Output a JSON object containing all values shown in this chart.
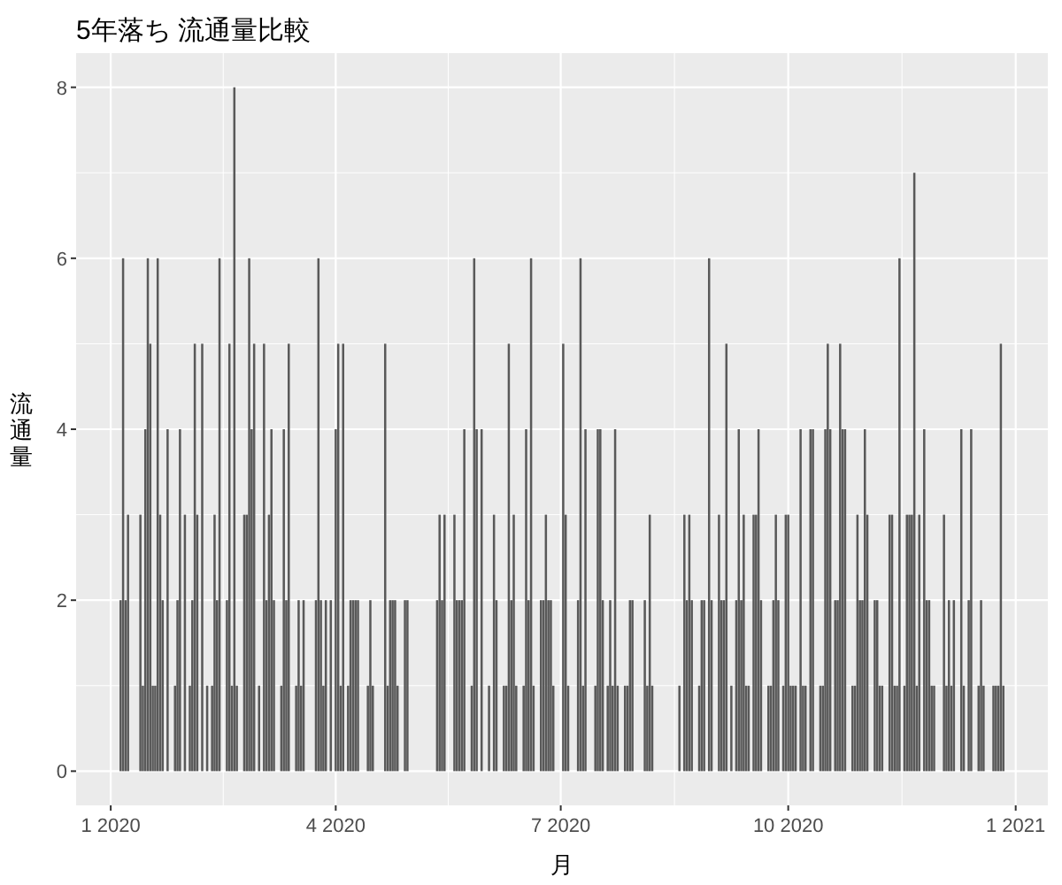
{
  "chart_data": {
    "type": "bar",
    "title": "5年落ち 流通量比較",
    "xlabel": "月",
    "ylabel": "流通量",
    "color": "#595959",
    "grid": true,
    "xlim": [
      "2019-12-18",
      "2021-01-14"
    ],
    "xticks": [
      {
        "value": "2020-01-01",
        "label": "1 2020"
      },
      {
        "value": "2020-04-01",
        "label": "4 2020"
      },
      {
        "value": "2020-07-01",
        "label": "7 2020"
      },
      {
        "value": "2020-10-01",
        "label": "10 2020"
      },
      {
        "value": "2021-01-01",
        "label": "1 2021"
      }
    ],
    "ylim": [
      -0.4,
      8.4
    ],
    "yticks": [
      0,
      2,
      4,
      6,
      8
    ],
    "x": [
      "2020-01-05",
      "2020-01-06",
      "2020-01-07",
      "2020-01-08",
      "2020-01-13",
      "2020-01-14",
      "2020-01-15",
      "2020-01-16",
      "2020-01-17",
      "2020-01-18",
      "2020-01-19",
      "2020-01-20",
      "2020-01-21",
      "2020-01-22",
      "2020-01-24",
      "2020-01-27",
      "2020-01-28",
      "2020-01-29",
      "2020-01-31",
      "2020-02-02",
      "2020-02-03",
      "2020-02-04",
      "2020-02-05",
      "2020-02-07",
      "2020-02-09",
      "2020-02-11",
      "2020-02-12",
      "2020-02-13",
      "2020-02-14",
      "2020-02-17",
      "2020-02-18",
      "2020-02-19",
      "2020-02-20",
      "2020-02-21",
      "2020-02-24",
      "2020-02-25",
      "2020-02-26",
      "2020-02-27",
      "2020-02-28",
      "2020-03-01",
      "2020-03-03",
      "2020-03-04",
      "2020-03-05",
      "2020-03-06",
      "2020-03-07",
      "2020-03-10",
      "2020-03-11",
      "2020-03-12",
      "2020-03-13",
      "2020-03-16",
      "2020-03-17",
      "2020-03-18",
      "2020-03-19",
      "2020-03-24",
      "2020-03-25",
      "2020-03-26",
      "2020-03-27",
      "2020-03-28",
      "2020-03-30",
      "2020-04-01",
      "2020-04-02",
      "2020-04-03",
      "2020-04-04",
      "2020-04-06",
      "2020-04-07",
      "2020-04-08",
      "2020-04-09",
      "2020-04-10",
      "2020-04-14",
      "2020-04-15",
      "2020-04-16",
      "2020-04-21",
      "2020-04-22",
      "2020-04-23",
      "2020-04-24",
      "2020-04-25",
      "2020-04-26",
      "2020-04-29",
      "2020-04-30",
      "2020-05-12",
      "2020-05-13",
      "2020-05-14",
      "2020-05-15",
      "2020-05-19",
      "2020-05-20",
      "2020-05-21",
      "2020-05-22",
      "2020-05-23",
      "2020-05-26",
      "2020-05-27",
      "2020-05-28",
      "2020-05-30",
      "2020-06-02",
      "2020-06-04",
      "2020-06-05",
      "2020-06-08",
      "2020-06-09",
      "2020-06-10",
      "2020-06-11",
      "2020-06-12",
      "2020-06-13",
      "2020-06-16",
      "2020-06-17",
      "2020-06-18",
      "2020-06-19",
      "2020-06-20",
      "2020-06-23",
      "2020-06-24",
      "2020-06-25",
      "2020-06-26",
      "2020-06-27",
      "2020-06-28",
      "2020-07-02",
      "2020-07-03",
      "2020-07-04",
      "2020-07-08",
      "2020-07-09",
      "2020-07-10",
      "2020-07-11",
      "2020-07-15",
      "2020-07-16",
      "2020-07-17",
      "2020-07-18",
      "2020-07-20",
      "2020-07-21",
      "2020-07-22",
      "2020-07-23",
      "2020-07-24",
      "2020-07-27",
      "2020-07-28",
      "2020-07-29",
      "2020-07-30",
      "2020-08-04",
      "2020-08-05",
      "2020-08-06",
      "2020-08-07",
      "2020-08-18",
      "2020-08-20",
      "2020-08-21",
      "2020-08-22",
      "2020-08-23",
      "2020-08-26",
      "2020-08-27",
      "2020-08-28",
      "2020-08-30",
      "2020-08-31",
      "2020-09-03",
      "2020-09-04",
      "2020-09-05",
      "2020-09-06",
      "2020-09-08",
      "2020-09-10",
      "2020-09-11",
      "2020-09-12",
      "2020-09-13",
      "2020-09-14",
      "2020-09-15",
      "2020-09-17",
      "2020-09-18",
      "2020-09-19",
      "2020-09-20",
      "2020-09-23",
      "2020-09-24",
      "2020-09-25",
      "2020-09-26",
      "2020-09-27",
      "2020-09-29",
      "2020-09-30",
      "2020-10-01",
      "2020-10-02",
      "2020-10-03",
      "2020-10-04",
      "2020-10-06",
      "2020-10-07",
      "2020-10-08",
      "2020-10-10",
      "2020-10-11",
      "2020-10-14",
      "2020-10-15",
      "2020-10-16",
      "2020-10-17",
      "2020-10-18",
      "2020-10-20",
      "2020-10-21",
      "2020-10-22",
      "2020-10-23",
      "2020-10-24",
      "2020-10-27",
      "2020-10-28",
      "2020-10-29",
      "2020-10-30",
      "2020-10-31",
      "2020-11-01",
      "2020-11-02",
      "2020-11-05",
      "2020-11-06",
      "2020-11-07",
      "2020-11-08",
      "2020-11-11",
      "2020-11-12",
      "2020-11-13",
      "2020-11-14",
      "2020-11-15",
      "2020-11-17",
      "2020-11-18",
      "2020-11-19",
      "2020-11-20",
      "2020-11-21",
      "2020-11-22",
      "2020-11-23",
      "2020-11-25",
      "2020-11-26",
      "2020-11-27",
      "2020-11-28",
      "2020-11-29",
      "2020-12-03",
      "2020-12-04",
      "2020-12-05",
      "2020-12-06",
      "2020-12-07",
      "2020-12-10",
      "2020-12-11",
      "2020-12-13",
      "2020-12-14",
      "2020-12-17",
      "2020-12-18",
      "2020-12-19",
      "2020-12-23",
      "2020-12-24",
      "2020-12-25",
      "2020-12-26",
      "2020-12-27"
    ],
    "values": [
      2,
      6,
      2,
      3,
      3,
      1,
      4,
      6,
      5,
      1,
      1,
      6,
      3,
      2,
      4,
      1,
      2,
      4,
      3,
      1,
      2,
      5,
      3,
      5,
      1,
      1,
      3,
      2,
      6,
      2,
      5,
      1,
      8,
      1,
      3,
      3,
      6,
      4,
      5,
      1,
      5,
      2,
      3,
      4,
      2,
      1,
      4,
      2,
      5,
      1,
      2,
      1,
      2,
      2,
      6,
      2,
      1,
      2,
      2,
      4,
      5,
      1,
      5,
      1,
      2,
      2,
      2,
      2,
      1,
      2,
      1,
      5,
      1,
      2,
      2,
      2,
      1,
      2,
      2,
      2,
      3,
      2,
      3,
      3,
      2,
      2,
      2,
      4,
      1,
      6,
      4,
      4,
      1,
      3,
      2,
      1,
      1,
      5,
      2,
      3,
      1,
      1,
      4,
      2,
      6,
      1,
      2,
      2,
      3,
      2,
      2,
      1,
      5,
      3,
      1,
      2,
      6,
      1,
      4,
      1,
      4,
      4,
      2,
      1,
      2,
      1,
      4,
      1,
      1,
      1,
      2,
      2,
      2,
      1,
      3,
      1,
      1,
      3,
      2,
      3,
      2,
      1,
      2,
      2,
      6,
      2,
      3,
      2,
      2,
      5,
      1,
      2,
      4,
      2,
      3,
      1,
      1,
      3,
      3,
      4,
      2,
      1,
      1,
      2,
      3,
      2,
      1,
      3,
      3,
      1,
      1,
      1,
      4,
      1,
      1,
      4,
      4,
      1,
      1,
      4,
      5,
      4,
      2,
      2,
      5,
      4,
      4,
      1,
      1,
      3,
      2,
      2,
      4,
      3,
      2,
      2,
      1,
      1,
      3,
      3,
      1,
      1,
      6,
      1,
      3,
      3,
      3,
      7,
      1,
      3,
      4,
      2,
      2,
      1,
      1,
      3,
      1,
      2,
      1,
      2,
      4,
      1,
      2,
      4,
      1,
      2,
      1,
      1,
      1,
      1,
      5,
      1
    ]
  }
}
